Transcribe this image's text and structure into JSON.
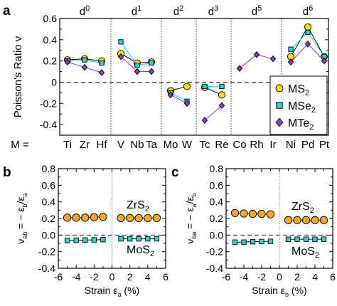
{
  "panel_letters": {
    "a": "a",
    "b": "b",
    "c": "c"
  },
  "chart_data": [
    {
      "panel": "a",
      "type": "scatter",
      "ylabel": "Poisson's Ratio ν",
      "ylim": [
        -0.5,
        0.6
      ],
      "yticks": [
        "0.6",
        "0.4",
        "0.2",
        "0",
        "-0.2",
        "-0.4"
      ],
      "x_prefix": "M =",
      "categories": [
        "Ti",
        "Zr",
        "Hf",
        "V",
        "Nb",
        "Ta",
        "Mo",
        "W",
        "Tc",
        "Re",
        "Co",
        "Rh",
        "Ir",
        "Ni",
        "Pd",
        "Pt"
      ],
      "groups": [
        "d0",
        "d1",
        "d2",
        "d3",
        "d5",
        "d6"
      ],
      "series": [
        {
          "name": "MS2",
          "legend": {
            "base": "MS",
            "sub": "2"
          },
          "color": "#FFE000",
          "marker": "circle",
          "segments": [
            [
              0,
              2
            ],
            [
              3,
              5
            ],
            [
              6,
              7
            ],
            [
              8,
              9
            ],
            [
              13,
              15
            ]
          ],
          "values": [
            0.21,
            0.22,
            0.2,
            0.27,
            0.18,
            0.19,
            -0.08,
            -0.04,
            -0.05,
            -0.12,
            null,
            null,
            null,
            0.24,
            0.52,
            0.24
          ]
        },
        {
          "name": "MSe2",
          "legend": {
            "base": "MSe",
            "sub": "2"
          },
          "color": "#27D3D3",
          "marker": "square",
          "segments": [
            [
              0,
              2
            ],
            [
              3,
              5
            ],
            [
              6,
              7
            ],
            [
              8,
              9
            ],
            [
              13,
              15
            ]
          ],
          "values": [
            0.2,
            0.21,
            0.18,
            0.38,
            0.16,
            0.18,
            -0.1,
            -0.18,
            -0.04,
            -0.04,
            null,
            null,
            null,
            0.31,
            0.47,
            0.24
          ]
        },
        {
          "name": "MTe2",
          "legend": {
            "base": "MTe",
            "sub": "2"
          },
          "color": "#8B3FC0",
          "marker": "diamond",
          "segments": [
            [
              0,
              2
            ],
            [
              3,
              5
            ],
            [
              6,
              7
            ],
            [
              8,
              9
            ],
            [
              10,
              12
            ],
            [
              13,
              15
            ]
          ],
          "values": [
            0.19,
            0.14,
            0.09,
            0.24,
            0.1,
            0.1,
            -0.12,
            -0.2,
            -0.36,
            -0.22,
            0.13,
            0.26,
            0.22,
            0.19,
            0.36,
            0.2
          ]
        }
      ],
      "legend_position": "right"
    },
    {
      "panel": "b",
      "type": "scatter",
      "ylabel": {
        "main": "ν",
        "sub": "ab",
        "rest": " = − ε",
        "sub2": "b",
        "rest2": "/ε",
        "sub3": "a"
      },
      "xlabel": {
        "main": "Strain ε",
        "sub": "a",
        "rest": " (%)"
      },
      "xlim": [
        -6,
        6
      ],
      "ylim": [
        -0.4,
        0.8
      ],
      "xticks": [
        "-6",
        "-4",
        "-2",
        "0",
        "2",
        "4",
        "6"
      ],
      "yticks": [
        "0.8",
        "0.6",
        "0.4",
        "0.2",
        "0.0",
        "-0.2",
        "-0.4"
      ],
      "x": [
        -5,
        -4,
        -3,
        -2,
        -1,
        1,
        2,
        3,
        4,
        5
      ],
      "series": [
        {
          "name": "ZrS2",
          "label": {
            "base": "ZrS",
            "sub": "2"
          },
          "color": "#F5A623",
          "marker": "circle",
          "values": [
            0.21,
            0.21,
            0.21,
            0.215,
            0.22,
            0.205,
            0.205,
            0.205,
            0.205,
            0.205
          ]
        },
        {
          "name": "MoS2",
          "label": {
            "base": "MoS",
            "sub": "2"
          },
          "color": "#27D3D3",
          "marker": "square",
          "values": [
            -0.065,
            -0.062,
            -0.06,
            -0.058,
            -0.055,
            -0.045,
            -0.045,
            -0.045,
            -0.045,
            -0.045
          ]
        }
      ]
    },
    {
      "panel": "c",
      "type": "scatter",
      "ylabel": {
        "main": "ν",
        "sub": "ba",
        "rest": " = − ε",
        "sub2": "a",
        "rest2": "/ε",
        "sub3": "b"
      },
      "xlabel": {
        "main": "Strain ε",
        "sub": "b",
        "rest": " (%)"
      },
      "xlim": [
        -6,
        6
      ],
      "ylim": [
        -0.4,
        0.8
      ],
      "xticks": [
        "-6",
        "-4",
        "-2",
        "0",
        "2",
        "4",
        "6"
      ],
      "yticks": [
        "0.8",
        "0.6",
        "0.4",
        "0.2",
        "0.0",
        "-0.2",
        "-0.4"
      ],
      "x": [
        -5,
        -4,
        -3,
        -2,
        -1,
        1,
        2,
        3,
        4,
        5
      ],
      "series": [
        {
          "name": "ZrS2",
          "label": {
            "base": "ZrS",
            "sub": "2"
          },
          "color": "#F5A623",
          "marker": "circle",
          "values": [
            0.265,
            0.26,
            0.255,
            0.255,
            0.25,
            0.18,
            0.18,
            0.18,
            0.18,
            0.18
          ]
        },
        {
          "name": "MoS2",
          "label": {
            "base": "MoS",
            "sub": "2"
          },
          "color": "#27D3D3",
          "marker": "square",
          "values": [
            -0.085,
            -0.085,
            -0.08,
            -0.078,
            -0.075,
            -0.05,
            -0.05,
            -0.05,
            -0.05,
            -0.05
          ]
        }
      ]
    }
  ]
}
